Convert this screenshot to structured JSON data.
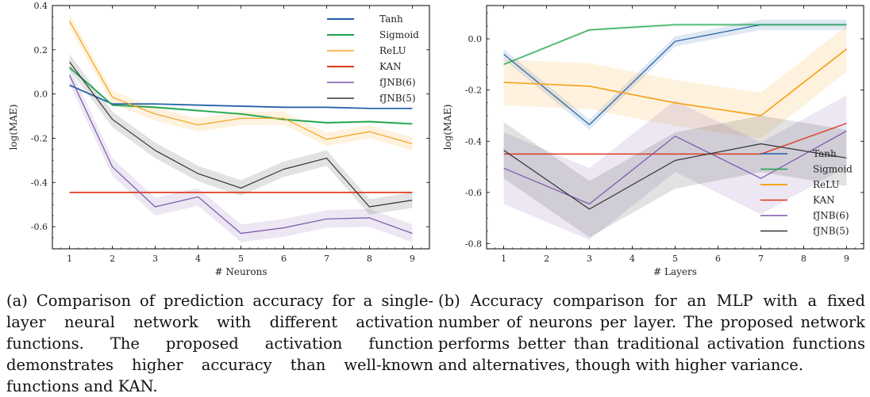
{
  "chart_data": [
    {
      "type": "line",
      "title": "",
      "xlabel": "# Neurons",
      "ylabel": "log(MAE)",
      "x": [
        1,
        2,
        3,
        4,
        5,
        6,
        7,
        8,
        9
      ],
      "xlim": [
        0.6,
        9.4
      ],
      "ylim": [
        -0.7,
        0.4
      ],
      "xticks": [
        1,
        2,
        3,
        4,
        5,
        6,
        7,
        8,
        9
      ],
      "yticks": [
        0.4,
        0.2,
        0.0,
        -0.2,
        -0.4,
        -0.6
      ],
      "ytick_labels": [
        "0.4",
        "0.2",
        "0.0",
        "-0.2",
        "-0.4",
        "-0.6"
      ],
      "legend_position": "top-right",
      "series": [
        {
          "name": "Tanh",
          "color": "#1f5fa8",
          "width": 1.7,
          "values": [
            0.04,
            -0.045,
            -0.045,
            -0.05,
            -0.055,
            -0.06,
            -0.06,
            -0.065,
            -0.065
          ],
          "band": 0.004
        },
        {
          "name": "Sigmoid",
          "color": "#1aa34a",
          "width": 1.7,
          "values": [
            0.12,
            -0.05,
            -0.06,
            -0.075,
            -0.09,
            -0.115,
            -0.13,
            -0.125,
            -0.135
          ],
          "band": 0.006
        },
        {
          "name": "ReLU",
          "color": "#f5a31a",
          "width": 1.2,
          "values": [
            0.33,
            -0.015,
            -0.09,
            -0.14,
            -0.11,
            -0.11,
            -0.205,
            -0.17,
            -0.225
          ],
          "band": 0.03
        },
        {
          "name": "KAN",
          "color": "#e0341a",
          "width": 1.7,
          "values": [
            -0.445,
            -0.445,
            -0.445,
            -0.445,
            -0.445,
            -0.445,
            -0.445,
            -0.445,
            -0.445
          ],
          "band": 0.004
        },
        {
          "name": "fJNB(6)",
          "color": "#7b55a8",
          "width": 1.2,
          "values": [
            0.085,
            -0.33,
            -0.51,
            -0.465,
            -0.63,
            -0.605,
            -0.565,
            -0.56,
            -0.63
          ],
          "band": 0.04
        },
        {
          "name": "fJNB(5)",
          "color": "#333333",
          "width": 1.2,
          "values": [
            0.145,
            -0.115,
            -0.255,
            -0.36,
            -0.425,
            -0.34,
            -0.29,
            -0.51,
            -0.48
          ],
          "band": 0.035
        }
      ]
    },
    {
      "type": "line",
      "title": "",
      "xlabel": "# Layers",
      "ylabel": "log(MAE)",
      "x": [
        1,
        3,
        5,
        7,
        9
      ],
      "xlim": [
        0.6,
        9.4
      ],
      "ylim": [
        -0.82,
        0.13
      ],
      "xticks": [
        1,
        2,
        3,
        4,
        5,
        6,
        7,
        8,
        9
      ],
      "yticks": [
        0.0,
        -0.2,
        -0.4,
        -0.6,
        -0.8
      ],
      "ytick_labels": [
        "0.0",
        "-0.2",
        "-0.4",
        "-0.6",
        "-0.8"
      ],
      "legend_position": "bottom-right",
      "series": [
        {
          "name": "Tanh",
          "color": "#1f5fa8",
          "width": 1.2,
          "values": [
            -0.06,
            -0.335,
            -0.01,
            0.055,
            0.055
          ],
          "band": 0.02
        },
        {
          "name": "Sigmoid",
          "color": "#1aa34a",
          "width": 1.2,
          "values": [
            -0.1,
            0.035,
            0.055,
            0.055,
            0.055
          ],
          "band": 0.006
        },
        {
          "name": "ReLU",
          "color": "#f5a31a",
          "width": 1.7,
          "values": [
            -0.17,
            -0.185,
            -0.25,
            -0.3,
            -0.04
          ],
          "band": 0.09
        },
        {
          "name": "KAN",
          "color": "#e0341a",
          "width": 1.2,
          "values": [
            -0.45,
            -0.45,
            -0.45,
            -0.45,
            -0.33
          ],
          "band": 0.004
        },
        {
          "name": "fJNB(6)",
          "color": "#7b55a8",
          "width": 1.2,
          "values": [
            -0.505,
            -0.645,
            -0.38,
            -0.545,
            -0.36
          ],
          "band": 0.14
        },
        {
          "name": "fJNB(5)",
          "color": "#333333",
          "width": 1.2,
          "values": [
            -0.435,
            -0.665,
            -0.475,
            -0.41,
            -0.465
          ],
          "band": 0.11
        }
      ]
    }
  ],
  "captions": {
    "a": "(a) Comparison of prediction accuracy for a single-layer neural network with different activation functions. The proposed activation function demonstrates higher accuracy than well-known functions and KAN.",
    "b": "(b) Accuracy comparison for an MLP with a fixed number of neurons per layer. The proposed network performs better than traditional activation functions and alternatives, though with higher variance."
  }
}
